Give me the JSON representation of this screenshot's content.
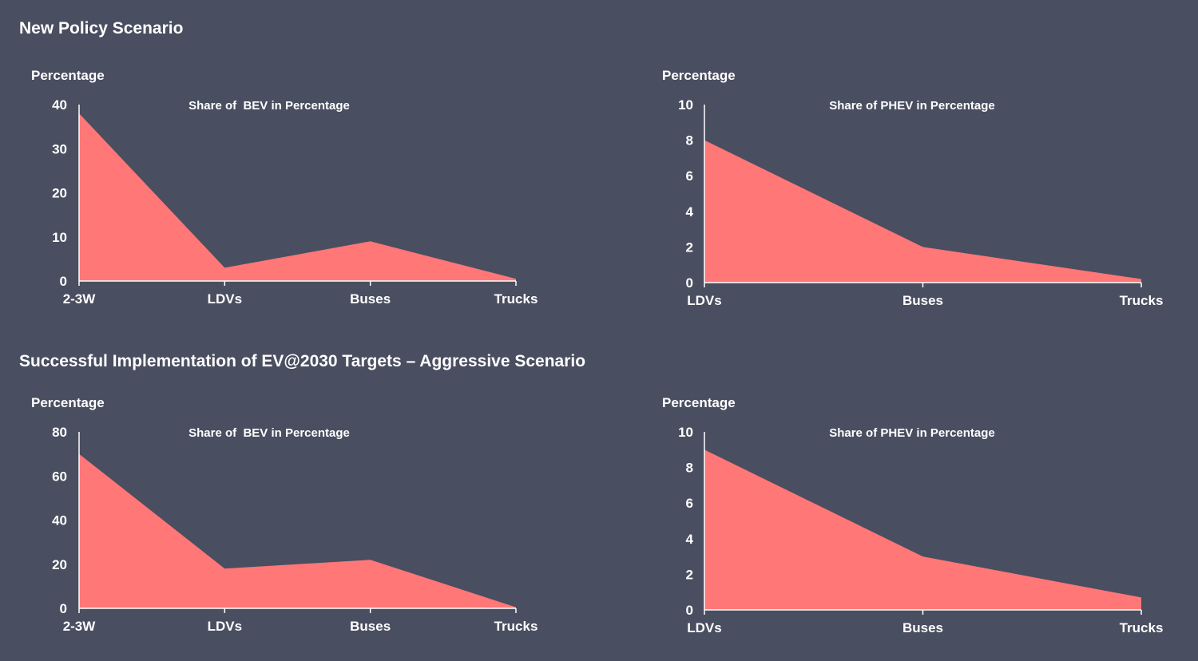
{
  "sections": [
    {
      "title": "New Policy Scenario"
    },
    {
      "title": "Successful Implementation of EV@2030 Targets – Aggressive Scenario"
    }
  ],
  "colors": {
    "background": "#494e60",
    "area_fill": "#ff7777",
    "axis": "#ffffff",
    "text": "#ffffff"
  },
  "chart_data": [
    {
      "type": "area",
      "title": "Share of  BEV in Percentage",
      "ylabel": "Percentage",
      "xlabel": "",
      "categories": [
        "2-3W",
        "LDVs",
        "Buses",
        "Trucks"
      ],
      "values": [
        38,
        3,
        9,
        0.5
      ],
      "ylim": [
        0,
        40
      ],
      "yticks": [
        0,
        10,
        20,
        30,
        40
      ],
      "grid": false,
      "legend": "none"
    },
    {
      "type": "area",
      "title": "Share of PHEV in Percentage",
      "ylabel": "Percentage",
      "xlabel": "",
      "categories": [
        "LDVs",
        "Buses",
        "Trucks"
      ],
      "values": [
        8,
        2,
        0.2
      ],
      "ylim": [
        0,
        10
      ],
      "yticks": [
        0,
        2,
        4,
        6,
        8,
        10
      ],
      "grid": false,
      "legend": "none"
    },
    {
      "type": "area",
      "title": "Share of  BEV in Percentage",
      "ylabel": "Percentage",
      "xlabel": "",
      "categories": [
        "2-3W",
        "LDVs",
        "Buses",
        "Trucks"
      ],
      "values": [
        70,
        18,
        22,
        0.5
      ],
      "ylim": [
        0,
        80
      ],
      "yticks": [
        0,
        20,
        40,
        60,
        80
      ],
      "grid": false,
      "legend": "none"
    },
    {
      "type": "area",
      "title": "Share of PHEV in Percentage",
      "ylabel": "Percentage",
      "xlabel": "",
      "categories": [
        "LDVs",
        "Buses",
        "Trucks"
      ],
      "values": [
        9,
        3,
        0.7
      ],
      "ylim": [
        0,
        10
      ],
      "yticks": [
        0,
        2,
        4,
        6,
        8,
        10
      ],
      "grid": false,
      "legend": "none"
    }
  ]
}
